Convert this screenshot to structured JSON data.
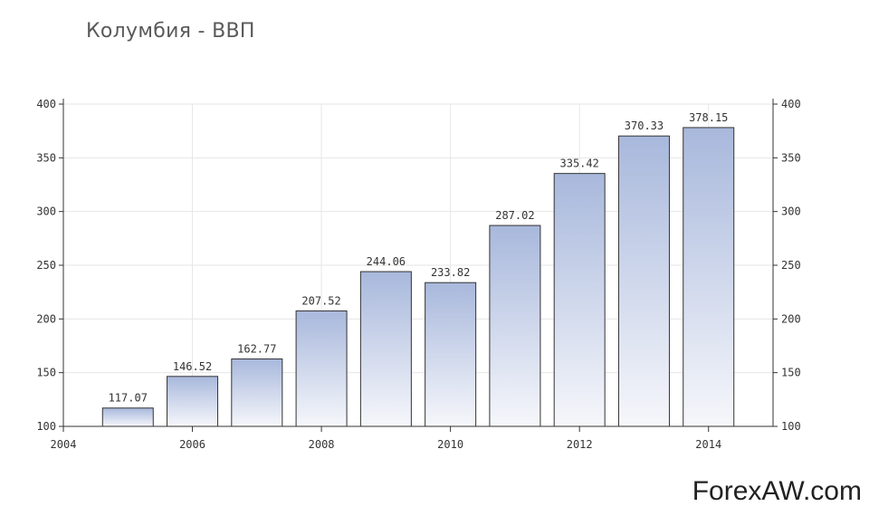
{
  "chart_data": {
    "type": "bar",
    "title": "Колумбия - ВВП",
    "categories": [
      "2005",
      "2006",
      "2007",
      "2008",
      "2009",
      "2010",
      "2011",
      "2012",
      "2013",
      "2014"
    ],
    "values": [
      117.07,
      146.52,
      162.77,
      207.52,
      244.06,
      233.82,
      287.02,
      335.42,
      370.33,
      378.15
    ],
    "value_labels": [
      "117.07",
      "146.52",
      "162.77",
      "207.52",
      "244.06",
      "233.82",
      "287.02",
      "335.42",
      "370.33",
      "378.15"
    ],
    "x_ticks": [
      "2004",
      "2006",
      "2008",
      "2010",
      "2012",
      "2014"
    ],
    "y_ticks": [
      "100",
      "150",
      "200",
      "250",
      "300",
      "350",
      "400"
    ],
    "ylim": [
      100,
      400
    ],
    "xlim": [
      2004,
      2015
    ],
    "grid": true,
    "colors": {
      "bar_top": "#a8b8dc",
      "bar_bottom": "#f6f7fb",
      "bar_stroke": "#333333",
      "grid": "#e6e6e6"
    }
  },
  "watermark": "ForexAW.com"
}
